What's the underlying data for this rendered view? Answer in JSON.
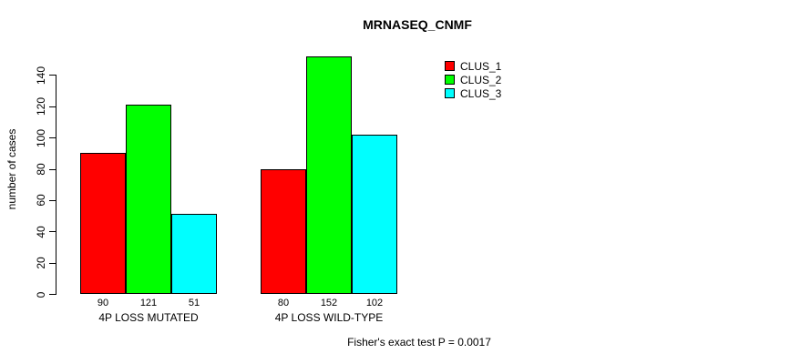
{
  "chart_data": {
    "type": "bar",
    "title": "MRNASEQ_CNMF",
    "ylabel": "number of cases",
    "xlabel": "",
    "categories": [
      "4P LOSS MUTATED",
      "4P LOSS WILD-TYPE"
    ],
    "series": [
      {
        "name": "CLUS_1",
        "color": "#ff0000",
        "values": [
          90,
          80
        ]
      },
      {
        "name": "CLUS_2",
        "color": "#00ff00",
        "values": [
          121,
          152
        ]
      },
      {
        "name": "CLUS_3",
        "color": "#00ffff",
        "values": [
          51,
          102
        ]
      }
    ],
    "show_bar_values": true,
    "yticks": [
      0,
      20,
      40,
      60,
      80,
      100,
      120,
      140
    ],
    "ylim": [
      0,
      158
    ],
    "grid": false,
    "legend_position": "top-right-inside",
    "bar_border_color": "#000000",
    "footnote": "Fisher's exact test P = 0.0017"
  }
}
